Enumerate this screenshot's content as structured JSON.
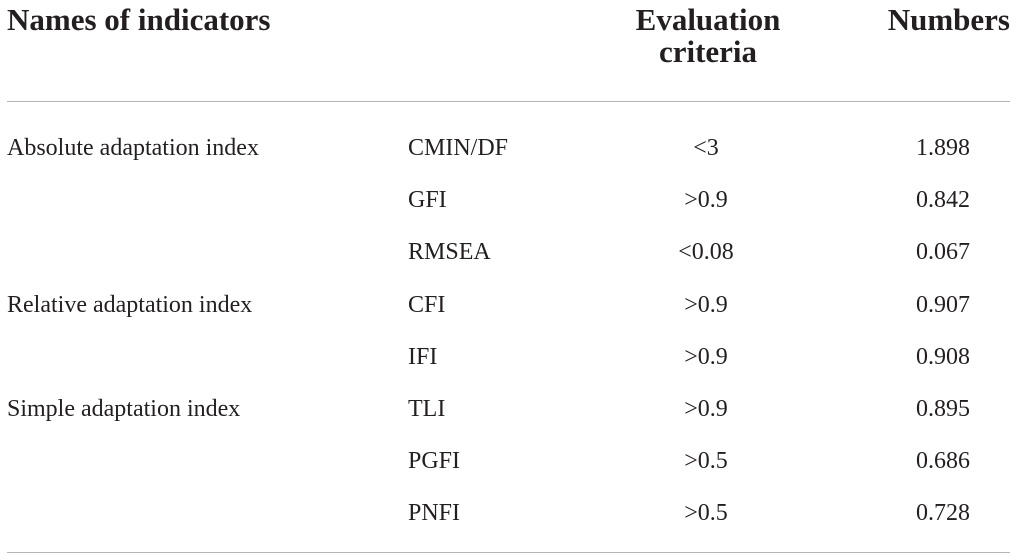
{
  "headers": {
    "names": "Names of indicators",
    "criteria_line1": "Evaluation",
    "criteria_line2": "criteria",
    "numbers": "Numbers"
  },
  "rows": [
    {
      "group": "Absolute adaptation index",
      "indicator": "CMIN/DF",
      "criteria": "<3",
      "number": "1.898"
    },
    {
      "group": "",
      "indicator": "GFI",
      "criteria": ">0.9",
      "number": "0.842"
    },
    {
      "group": "",
      "indicator": "RMSEA",
      "criteria": "<0.08",
      "number": "0.067"
    },
    {
      "group": "Relative adaptation index",
      "indicator": "CFI",
      "criteria": ">0.9",
      "number": "0.907"
    },
    {
      "group": "",
      "indicator": "IFI",
      "criteria": ">0.9",
      "number": "0.908"
    },
    {
      "group": "Simple adaptation index",
      "indicator": "TLI",
      "criteria": ">0.9",
      "number": "0.895"
    },
    {
      "group": "",
      "indicator": "PGFI",
      "criteria": ">0.5",
      "number": "0.686"
    },
    {
      "group": "",
      "indicator": "PNFI",
      "criteria": ">0.5",
      "number": "0.728"
    }
  ]
}
